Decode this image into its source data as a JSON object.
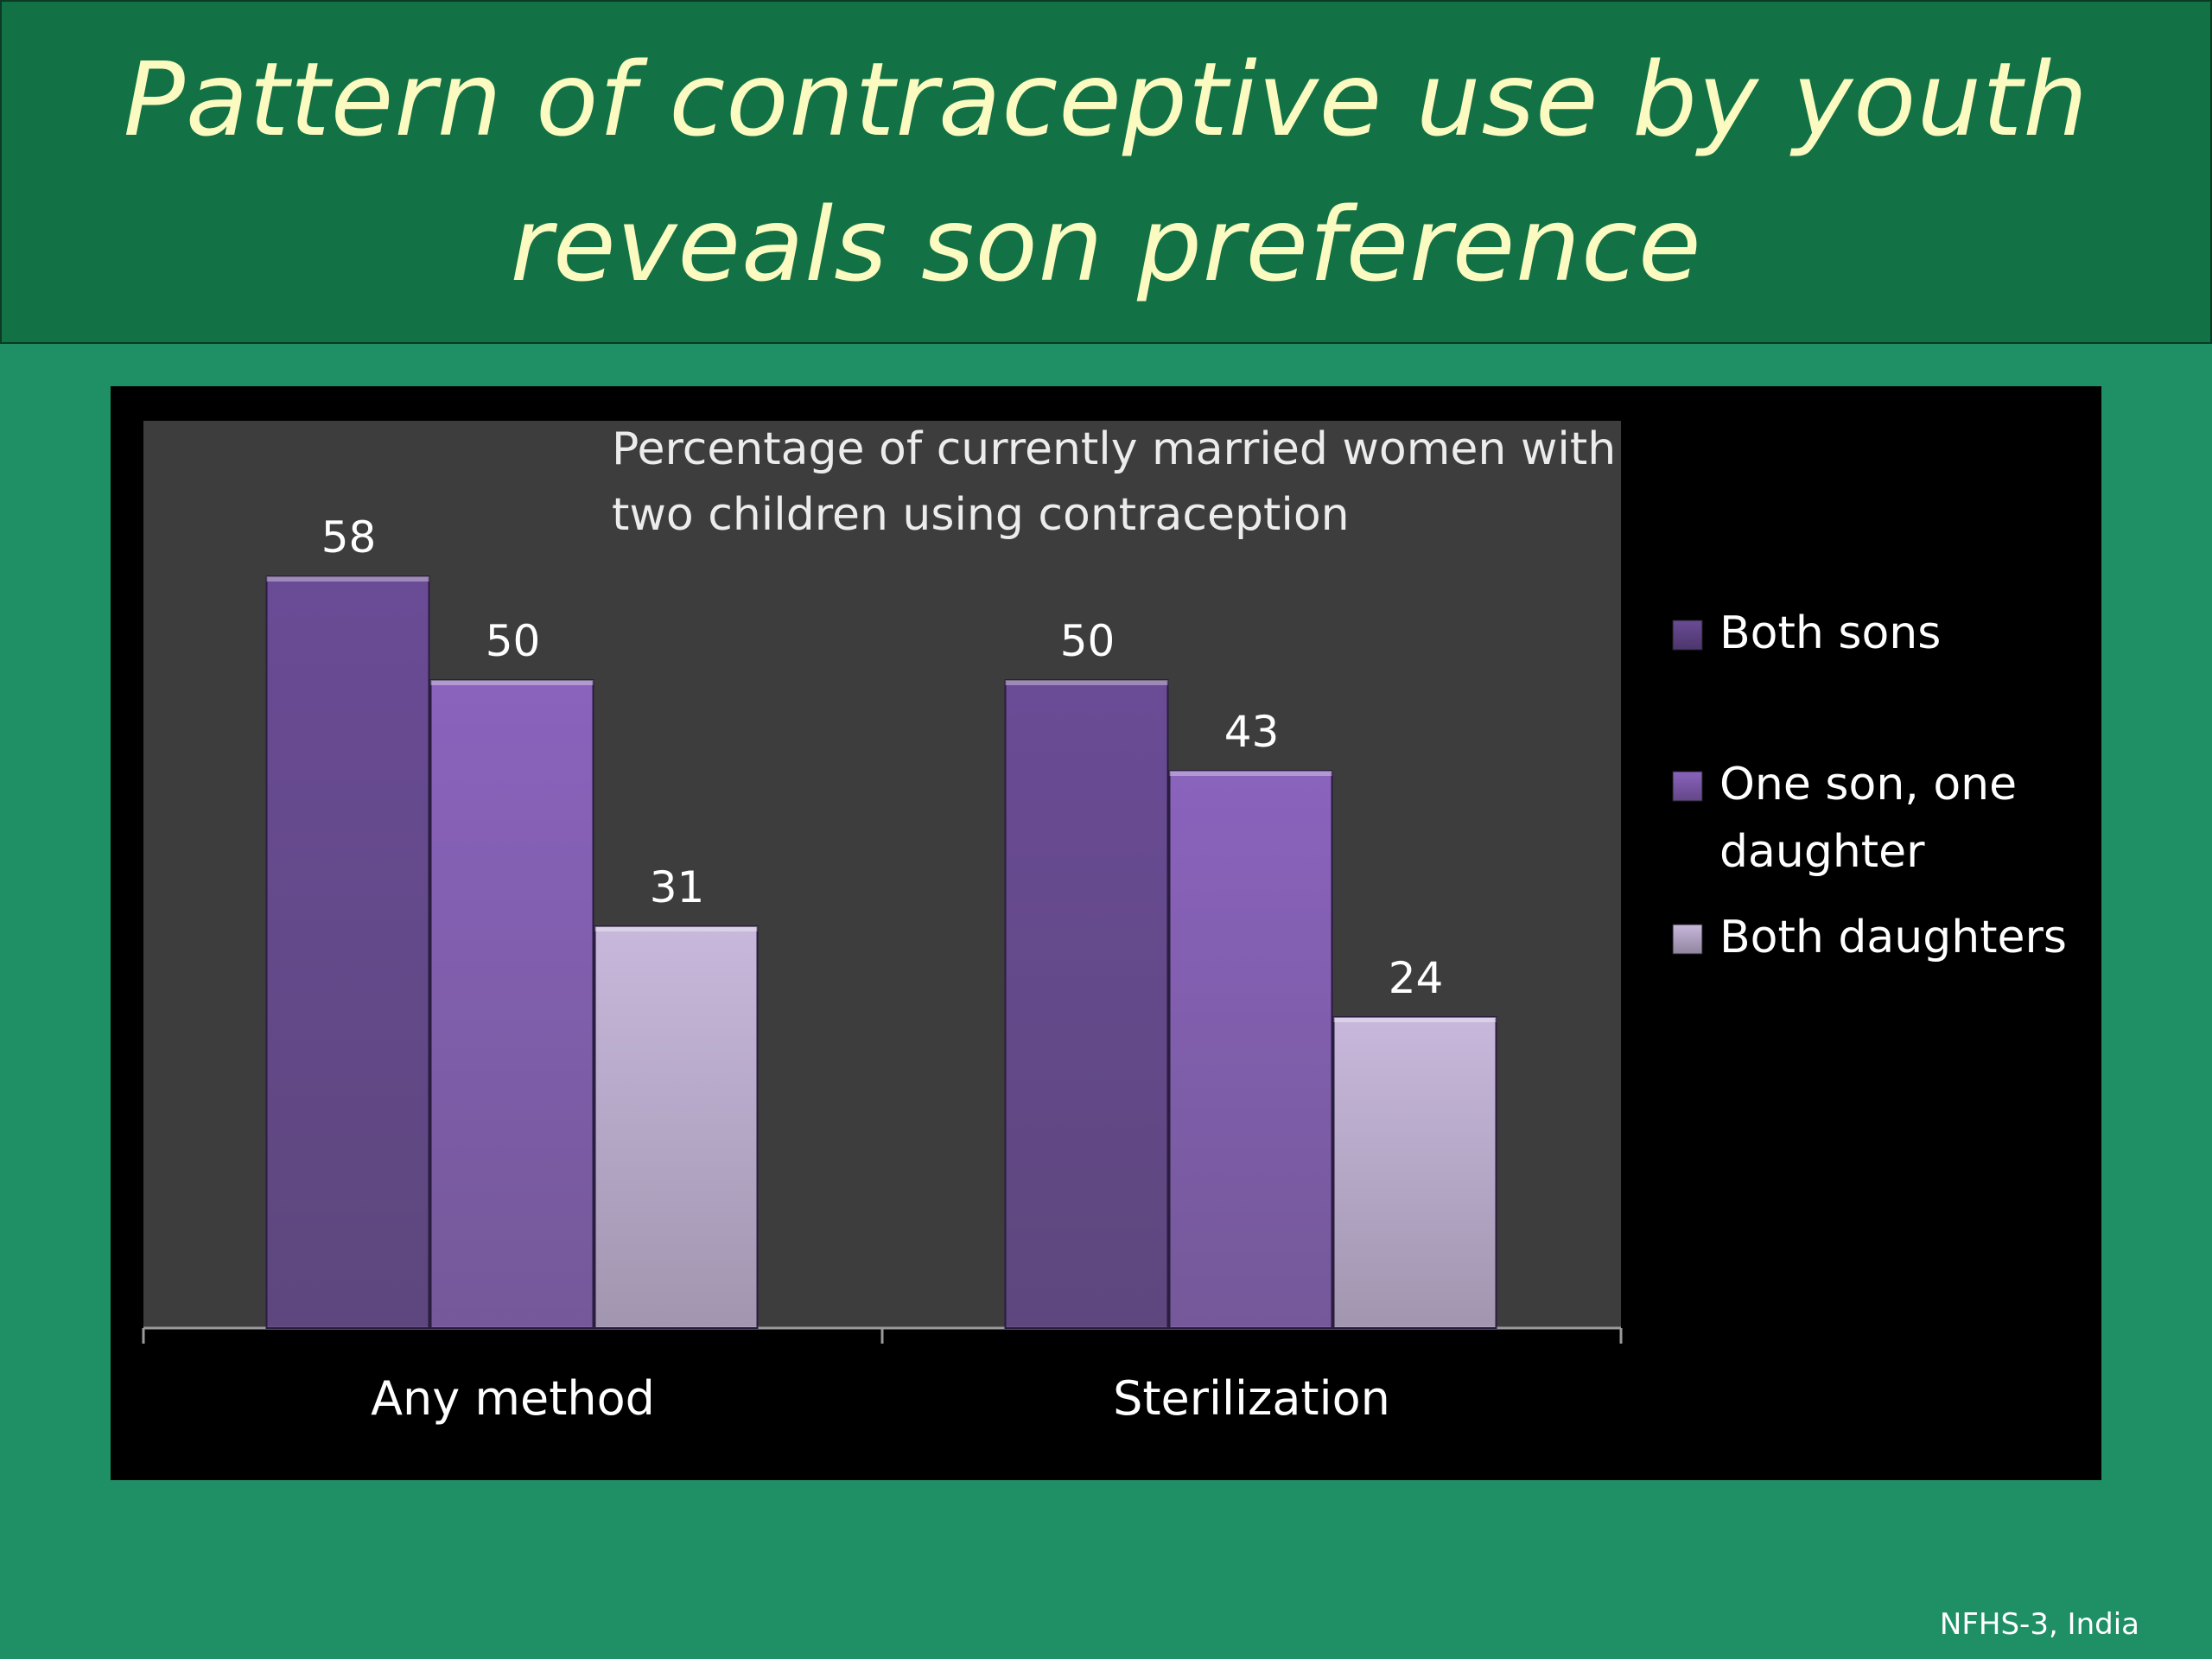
{
  "slide": {
    "title": "Pattern of contraceptive use by youth reveals son preference",
    "source": "NFHS-3, India"
  },
  "colors": {
    "slide_background": "#1f8f66",
    "title_band": "#127245",
    "title_text": "#fbfac0",
    "chart_background": "#000000",
    "plot_background": "#3d3d3d"
  },
  "chart_data": {
    "type": "bar",
    "title": "Percentage of currently married women with two children using contraception",
    "categories": [
      "Any method",
      "Sterilization"
    ],
    "series": [
      {
        "name": "Both sons",
        "values": [
          58,
          50
        ],
        "color": "#6a4b96"
      },
      {
        "name": "One son, one daughter",
        "values": [
          50,
          43
        ],
        "color": "#8a63bd"
      },
      {
        "name": "Both daughters",
        "values": [
          31,
          24
        ],
        "color": "#c8b8dc"
      }
    ],
    "data_labels": true,
    "legend_position": "right",
    "grid": false,
    "ylim": [
      0,
      70
    ]
  }
}
